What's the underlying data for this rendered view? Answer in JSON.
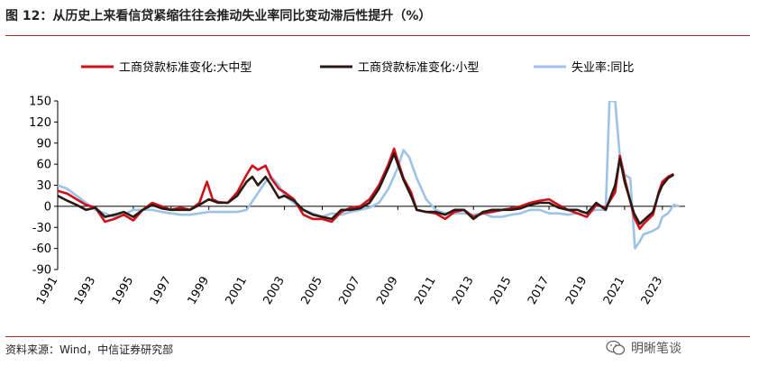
{
  "figure": {
    "title": "图 12：从历史上来看信贷紧缩往往会推动失业率同比变动滞后性提升（%）",
    "source": "资料来源：Wind，中信证券研究部",
    "watermark": "明晰笔谈"
  },
  "chart_data": {
    "type": "line",
    "title": "",
    "xlabel": "",
    "ylabel": "",
    "ylim": [
      -90,
      150
    ],
    "xlim": [
      1991,
      2024.2
    ],
    "yticks": [
      -90,
      -60,
      -30,
      0,
      30,
      60,
      90,
      120,
      150
    ],
    "xticks": [
      "1991",
      "1993",
      "1995",
      "1997",
      "1999",
      "2001",
      "2003",
      "2005",
      "2007",
      "2009",
      "2011",
      "2013",
      "2015",
      "2017",
      "2019",
      "2021",
      "2023"
    ],
    "grid": false,
    "legend_position": "top",
    "series": [
      {
        "name": "工商贷款标准变化:大中型",
        "color": "#d0111b",
        "points": [
          [
            1991.0,
            22
          ],
          [
            1991.5,
            18
          ],
          [
            1992.0,
            10
          ],
          [
            1992.5,
            2
          ],
          [
            1993.0,
            -2
          ],
          [
            1993.5,
            -22
          ],
          [
            1994.0,
            -18
          ],
          [
            1994.5,
            -12
          ],
          [
            1995.0,
            -20
          ],
          [
            1995.5,
            -5
          ],
          [
            1996.0,
            5
          ],
          [
            1996.5,
            0
          ],
          [
            1997.0,
            -5
          ],
          [
            1997.5,
            -2
          ],
          [
            1998.0,
            -5
          ],
          [
            1998.5,
            5
          ],
          [
            1998.9,
            35
          ],
          [
            1999.2,
            10
          ],
          [
            1999.5,
            6
          ],
          [
            2000.0,
            5
          ],
          [
            2000.5,
            20
          ],
          [
            2001.0,
            45
          ],
          [
            2001.3,
            58
          ],
          [
            2001.6,
            52
          ],
          [
            2002.0,
            58
          ],
          [
            2002.3,
            40
          ],
          [
            2002.7,
            25
          ],
          [
            2003.0,
            20
          ],
          [
            2003.5,
            10
          ],
          [
            2004.0,
            -12
          ],
          [
            2004.5,
            -18
          ],
          [
            2005.0,
            -18
          ],
          [
            2005.5,
            -22
          ],
          [
            2006.0,
            -8
          ],
          [
            2006.5,
            -2
          ],
          [
            2007.0,
            0
          ],
          [
            2007.5,
            10
          ],
          [
            2008.0,
            30
          ],
          [
            2008.5,
            60
          ],
          [
            2008.8,
            82
          ],
          [
            2009.0,
            65
          ],
          [
            2009.3,
            40
          ],
          [
            2009.7,
            20
          ],
          [
            2010.0,
            -5
          ],
          [
            2010.5,
            -8
          ],
          [
            2011.0,
            -10
          ],
          [
            2011.5,
            -18
          ],
          [
            2012.0,
            -8
          ],
          [
            2012.5,
            -5
          ],
          [
            2013.0,
            -15
          ],
          [
            2013.5,
            -10
          ],
          [
            2014.0,
            -8
          ],
          [
            2014.5,
            -5
          ],
          [
            2015.0,
            -3
          ],
          [
            2015.5,
            0
          ],
          [
            2016.0,
            5
          ],
          [
            2016.5,
            8
          ],
          [
            2017.0,
            10
          ],
          [
            2017.5,
            2
          ],
          [
            2018.0,
            -5
          ],
          [
            2018.5,
            -10
          ],
          [
            2019.0,
            -15
          ],
          [
            2019.5,
            2
          ],
          [
            2020.0,
            -2
          ],
          [
            2020.5,
            20
          ],
          [
            2020.75,
            72
          ],
          [
            2021.0,
            40
          ],
          [
            2021.5,
            -15
          ],
          [
            2021.8,
            -32
          ],
          [
            2022.0,
            -25
          ],
          [
            2022.5,
            -12
          ],
          [
            2022.8,
            20
          ],
          [
            2023.0,
            35
          ],
          [
            2023.3,
            42
          ],
          [
            2023.6,
            46
          ]
        ]
      },
      {
        "name": "工商贷款标准变化:小型",
        "color": "#2b1a14",
        "points": [
          [
            1991.0,
            15
          ],
          [
            1991.5,
            8
          ],
          [
            1992.0,
            2
          ],
          [
            1992.5,
            -5
          ],
          [
            1993.0,
            -2
          ],
          [
            1993.5,
            -15
          ],
          [
            1994.0,
            -12
          ],
          [
            1994.5,
            -8
          ],
          [
            1995.0,
            -15
          ],
          [
            1995.5,
            -5
          ],
          [
            1996.0,
            2
          ],
          [
            1996.5,
            -3
          ],
          [
            1997.0,
            -5
          ],
          [
            1997.5,
            -5
          ],
          [
            1998.0,
            -5
          ],
          [
            1998.5,
            2
          ],
          [
            1999.0,
            10
          ],
          [
            1999.5,
            5
          ],
          [
            2000.0,
            5
          ],
          [
            2000.5,
            15
          ],
          [
            2001.0,
            35
          ],
          [
            2001.3,
            42
          ],
          [
            2001.6,
            30
          ],
          [
            2002.0,
            42
          ],
          [
            2002.3,
            30
          ],
          [
            2002.7,
            12
          ],
          [
            2003.0,
            15
          ],
          [
            2003.5,
            8
          ],
          [
            2004.0,
            -5
          ],
          [
            2004.5,
            -12
          ],
          [
            2005.0,
            -15
          ],
          [
            2005.5,
            -18
          ],
          [
            2006.0,
            -5
          ],
          [
            2006.5,
            -5
          ],
          [
            2007.0,
            -3
          ],
          [
            2007.5,
            5
          ],
          [
            2008.0,
            25
          ],
          [
            2008.5,
            55
          ],
          [
            2008.8,
            75
          ],
          [
            2009.0,
            60
          ],
          [
            2009.3,
            38
          ],
          [
            2009.7,
            15
          ],
          [
            2010.0,
            -5
          ],
          [
            2010.5,
            -8
          ],
          [
            2011.0,
            -8
          ],
          [
            2011.5,
            -12
          ],
          [
            2012.0,
            -5
          ],
          [
            2012.5,
            -5
          ],
          [
            2013.0,
            -18
          ],
          [
            2013.5,
            -8
          ],
          [
            2014.0,
            -5
          ],
          [
            2014.5,
            -5
          ],
          [
            2015.0,
            -5
          ],
          [
            2015.5,
            -3
          ],
          [
            2016.0,
            2
          ],
          [
            2016.5,
            5
          ],
          [
            2017.0,
            5
          ],
          [
            2017.5,
            -2
          ],
          [
            2018.0,
            -5
          ],
          [
            2018.5,
            -5
          ],
          [
            2019.0,
            -10
          ],
          [
            2019.5,
            5
          ],
          [
            2020.0,
            -5
          ],
          [
            2020.5,
            30
          ],
          [
            2020.75,
            68
          ],
          [
            2021.0,
            35
          ],
          [
            2021.5,
            -10
          ],
          [
            2021.8,
            -25
          ],
          [
            2022.0,
            -20
          ],
          [
            2022.5,
            -8
          ],
          [
            2022.8,
            18
          ],
          [
            2023.0,
            30
          ],
          [
            2023.3,
            40
          ],
          [
            2023.6,
            45
          ]
        ]
      },
      {
        "name": "失业率:同比",
        "color": "#9dc3e6",
        "points": [
          [
            1991.0,
            30
          ],
          [
            1991.5,
            25
          ],
          [
            1992.0,
            15
          ],
          [
            1992.5,
            5
          ],
          [
            1993.0,
            -5
          ],
          [
            1993.5,
            -10
          ],
          [
            1994.0,
            -15
          ],
          [
            1994.5,
            -12
          ],
          [
            1995.0,
            -5
          ],
          [
            1995.5,
            -5
          ],
          [
            1996.0,
            -5
          ],
          [
            1996.5,
            -8
          ],
          [
            1997.0,
            -10
          ],
          [
            1997.5,
            -12
          ],
          [
            1998.0,
            -12
          ],
          [
            1998.5,
            -10
          ],
          [
            1999.0,
            -8
          ],
          [
            1999.5,
            -8
          ],
          [
            2000.0,
            -8
          ],
          [
            2000.5,
            -8
          ],
          [
            2001.0,
            -5
          ],
          [
            2001.5,
            15
          ],
          [
            2002.0,
            35
          ],
          [
            2002.3,
            42
          ],
          [
            2002.7,
            30
          ],
          [
            2003.0,
            15
          ],
          [
            2003.5,
            5
          ],
          [
            2004.0,
            -5
          ],
          [
            2004.5,
            -10
          ],
          [
            2005.0,
            -15
          ],
          [
            2005.5,
            -10
          ],
          [
            2006.0,
            -12
          ],
          [
            2006.5,
            -8
          ],
          [
            2007.0,
            -5
          ],
          [
            2007.5,
            -2
          ],
          [
            2008.0,
            5
          ],
          [
            2008.5,
            25
          ],
          [
            2009.0,
            55
          ],
          [
            2009.3,
            80
          ],
          [
            2009.6,
            70
          ],
          [
            2010.0,
            40
          ],
          [
            2010.5,
            10
          ],
          [
            2011.0,
            -5
          ],
          [
            2011.5,
            -10
          ],
          [
            2012.0,
            -10
          ],
          [
            2012.5,
            -10
          ],
          [
            2013.0,
            -12
          ],
          [
            2013.5,
            -10
          ],
          [
            2014.0,
            -15
          ],
          [
            2014.5,
            -15
          ],
          [
            2015.0,
            -12
          ],
          [
            2015.5,
            -10
          ],
          [
            2016.0,
            -5
          ],
          [
            2016.5,
            -5
          ],
          [
            2017.0,
            -10
          ],
          [
            2017.5,
            -10
          ],
          [
            2018.0,
            -12
          ],
          [
            2018.5,
            -10
          ],
          [
            2019.0,
            -8
          ],
          [
            2019.5,
            -5
          ],
          [
            2020.0,
            -5
          ],
          [
            2020.2,
            150
          ],
          [
            2020.5,
            150
          ],
          [
            2020.75,
            70
          ],
          [
            2021.0,
            45
          ],
          [
            2021.3,
            40
          ],
          [
            2021.55,
            -60
          ],
          [
            2021.8,
            -50
          ],
          [
            2022.0,
            -40
          ],
          [
            2022.5,
            -35
          ],
          [
            2022.8,
            -30
          ],
          [
            2023.0,
            -15
          ],
          [
            2023.3,
            -10
          ],
          [
            2023.6,
            2
          ],
          [
            2023.9,
            0
          ]
        ]
      }
    ]
  }
}
